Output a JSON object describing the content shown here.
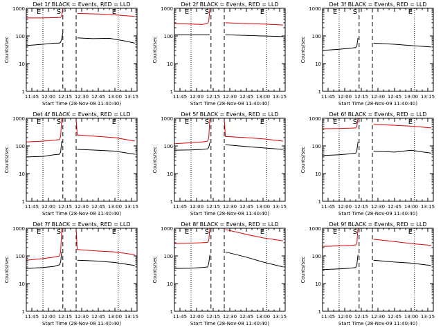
{
  "chart_data": [
    {
      "type": "line",
      "title": "Det 1f BLACK = Events, RED = LLD",
      "ylabel": "Counts/sec",
      "xlabel": "Start Time (28-Nov-08 11:40:40)",
      "yscale": "log",
      "ylim": [
        1,
        1000
      ],
      "xlim": [
        "11:40",
        "13:20"
      ],
      "x_ticks": [
        "11:45",
        "12:00",
        "12:15",
        "12:30",
        "12:45",
        "13:00",
        "13:15"
      ],
      "y_ticks": [
        "1",
        "10",
        "100",
        "1000"
      ],
      "markers": [
        {
          "label": "E",
          "time": "11:55",
          "style": "dotted"
        },
        {
          "label": "S",
          "time": "12:13",
          "style": "dashed"
        },
        {
          "label": "",
          "time": "12:25",
          "style": "dashed"
        },
        {
          "label": "E",
          "time": "13:03",
          "style": "dotted"
        }
      ],
      "series": [
        {
          "color": "red",
          "x": [
            "11:40",
            "11:55",
            "12:05",
            "12:11",
            "12:12",
            "12:13",
            "12:25",
            "12:26",
            "12:45",
            "13:00",
            "13:10",
            "13:18"
          ],
          "values": [
            450,
            450,
            460,
            470,
            550,
            1000,
            null,
            650,
            620,
            580,
            540,
            510
          ]
        },
        {
          "color": "black",
          "x": [
            "11:40",
            "11:55",
            "12:05",
            "12:10",
            "12:11",
            "12:12",
            "12:13",
            "12:25",
            "12:26",
            "12:40",
            "12:55",
            "13:10",
            "13:18"
          ],
          "values": [
            45,
            50,
            55,
            55,
            60,
            80,
            130,
            null,
            85,
            80,
            82,
            65,
            55
          ]
        }
      ]
    },
    {
      "type": "line",
      "title": "Det 2f BLACK = Events, RED = LLD",
      "ylabel": "Counts/sec",
      "xlabel": "Start Time (28-Nov-08 11:40:40)",
      "yscale": "log",
      "ylim": [
        1,
        1000
      ],
      "xlim": [
        "11:40",
        "13:20"
      ],
      "x_ticks": [
        "11:45",
        "12:00",
        "12:15",
        "12:30",
        "12:45",
        "13:00",
        "13:15"
      ],
      "y_ticks": [
        "1",
        "10",
        "100",
        "1000"
      ],
      "markers": [
        {
          "label": "E",
          "time": "11:55",
          "style": "dotted"
        },
        {
          "label": "S",
          "time": "12:13",
          "style": "dashed"
        },
        {
          "label": "",
          "time": "12:25",
          "style": "dashed"
        },
        {
          "label": "E",
          "time": "13:03",
          "style": "dotted"
        }
      ],
      "series": [
        {
          "color": "red",
          "x": [
            "11:40",
            "11:55",
            "12:05",
            "12:10",
            "12:11",
            "12:12",
            "12:25",
            "12:26",
            "12:45",
            "13:00",
            "13:18"
          ],
          "values": [
            280,
            270,
            260,
            280,
            350,
            1000,
            null,
            300,
            280,
            270,
            250
          ]
        },
        {
          "color": "black",
          "x": [
            "11:40",
            "11:55",
            "12:05",
            "12:10",
            "12:11",
            "12:12",
            "12:25",
            "12:26",
            "12:45",
            "13:00",
            "13:18"
          ],
          "values": [
            110,
            110,
            110,
            110,
            110,
            110,
            null,
            110,
            105,
            100,
            95
          ]
        }
      ]
    },
    {
      "type": "line",
      "title": "Det 3f BLACK = Events, RED = LLD",
      "ylabel": "Counts/sec",
      "xlabel": "Start Time (28-Nov-09 11:40:40)",
      "yscale": "log",
      "ylim": [
        1,
        1000
      ],
      "xlim": [
        "11:40",
        "13:20"
      ],
      "x_ticks": [
        "11:45",
        "12:00",
        "12:15",
        "12:30",
        "12:45",
        "13:00",
        "13:15"
      ],
      "y_ticks": [
        "1",
        "10",
        "100",
        "1000"
      ],
      "markers": [
        {
          "label": "E",
          "time": "11:55",
          "style": "dotted"
        },
        {
          "label": "S",
          "time": "12:13",
          "style": "dashed"
        },
        {
          "label": "",
          "time": "12:25",
          "style": "dashed"
        },
        {
          "label": "E",
          "time": "13:03",
          "style": "dotted"
        }
      ],
      "series": [
        {
          "color": "red",
          "x": [
            "11:40",
            "11:55",
            "12:05",
            "12:10",
            "12:11",
            "12:12",
            "12:13",
            "12:25",
            "12:26",
            "12:45",
            "13:00",
            "13:18"
          ],
          "values": [
            null,
            null,
            null,
            null,
            null,
            null,
            null,
            null,
            null,
            null,
            null,
            null
          ]
        },
        {
          "color": "black",
          "x": [
            "11:40",
            "11:55",
            "12:05",
            "12:10",
            "12:11",
            "12:12",
            "12:25",
            "12:26",
            "12:45",
            "13:00",
            "13:18"
          ],
          "values": [
            30,
            33,
            36,
            38,
            45,
            85,
            null,
            55,
            50,
            45,
            40
          ]
        }
      ]
    },
    {
      "type": "line",
      "title": "Det 4f BLACK = Events, RED = LLD",
      "ylabel": "Counts/sec",
      "xlabel": "Start Time (28-Nov-08 11:40:40)",
      "yscale": "log",
      "ylim": [
        1,
        1000
      ],
      "xlim": [
        "11:40",
        "13:20"
      ],
      "x_ticks": [
        "11:45",
        "12:00",
        "12:15",
        "12:30",
        "12:45",
        "13:00",
        "13:15"
      ],
      "y_ticks": [
        "1",
        "10",
        "100",
        "1000"
      ],
      "markers": [
        {
          "label": "E",
          "time": "11:55",
          "style": "dotted"
        },
        {
          "label": "S",
          "time": "12:13",
          "style": "dashed"
        },
        {
          "label": "",
          "time": "12:25",
          "style": "dashed"
        },
        {
          "label": "E",
          "time": "13:03",
          "style": "dotted"
        }
      ],
      "series": [
        {
          "color": "red",
          "x": [
            "11:40",
            "11:55",
            "12:05",
            "12:10",
            "12:11",
            "12:12",
            "12:25",
            "12:26",
            "12:45",
            "13:00",
            "13:18"
          ],
          "values": [
            140,
            150,
            160,
            170,
            220,
            1000,
            1000,
            250,
            220,
            200,
            150
          ]
        },
        {
          "color": "black",
          "x": [
            "11:40",
            "11:55",
            "12:05",
            "12:10",
            "12:11",
            "12:12",
            "12:25",
            "12:26",
            "12:45",
            "13:00",
            "13:18"
          ],
          "values": [
            40,
            42,
            48,
            50,
            60,
            150,
            null,
            75,
            70,
            65,
            50
          ]
        }
      ]
    },
    {
      "type": "line",
      "title": "Det 5f BLACK = Events, RED = LLD",
      "ylabel": "Counts/sec",
      "xlabel": "Start Time (28-Nov-08 11:40:40)",
      "yscale": "log",
      "ylim": [
        1,
        1000
      ],
      "xlim": [
        "11:40",
        "13:20"
      ],
      "x_ticks": [
        "11:45",
        "12:00",
        "12:15",
        "12:30",
        "12:45",
        "13:00",
        "13:15"
      ],
      "y_ticks": [
        "1",
        "10",
        "100",
        "1000"
      ],
      "markers": [
        {
          "label": "E",
          "time": "11:55",
          "style": "dotted"
        },
        {
          "label": "S",
          "time": "12:13",
          "style": "dashed"
        },
        {
          "label": "",
          "time": "12:25",
          "style": "dashed"
        },
        {
          "label": "E",
          "time": "13:03",
          "style": "dotted"
        }
      ],
      "series": [
        {
          "color": "red",
          "x": [
            "11:40",
            "11:55",
            "12:05",
            "12:10",
            "12:11",
            "12:12",
            "12:25",
            "12:26",
            "12:45",
            "13:00",
            "13:18"
          ],
          "values": [
            120,
            130,
            140,
            150,
            200,
            1000,
            1000,
            220,
            200,
            180,
            150
          ]
        },
        {
          "color": "black",
          "x": [
            "11:40",
            "11:55",
            "12:05",
            "12:10",
            "12:11",
            "12:12",
            "12:25",
            "12:26",
            "12:45",
            "13:00",
            "13:18"
          ],
          "values": [
            70,
            72,
            75,
            78,
            90,
            130,
            null,
            110,
            95,
            85,
            75
          ]
        }
      ]
    },
    {
      "type": "line",
      "title": "Det 6f BLACK = Events, RED = LLD",
      "ylabel": "Counts/sec",
      "xlabel": "Start Time (28-Nov-09 11:40:40)",
      "yscale": "log",
      "ylim": [
        1,
        1000
      ],
      "xlim": [
        "11:40",
        "13:20"
      ],
      "x_ticks": [
        "11:45",
        "12:00",
        "12:15",
        "12:30",
        "12:45",
        "13:00",
        "13:15"
      ],
      "y_ticks": [
        "1",
        "10",
        "100",
        "1000"
      ],
      "markers": [
        {
          "label": "E",
          "time": "11:55",
          "style": "dotted"
        },
        {
          "label": "S",
          "time": "12:13",
          "style": "dashed"
        },
        {
          "label": "",
          "time": "12:25",
          "style": "dashed"
        },
        {
          "label": "E",
          "time": "13:03",
          "style": "dotted"
        }
      ],
      "series": [
        {
          "color": "red",
          "x": [
            "11:40",
            "11:55",
            "12:05",
            "12:10",
            "12:11",
            "12:12",
            "12:25",
            "12:26",
            "12:45",
            "13:00",
            "13:18"
          ],
          "values": [
            420,
            430,
            440,
            450,
            520,
            1000,
            null,
            600,
            560,
            520,
            450
          ]
        },
        {
          "color": "black",
          "x": [
            "11:40",
            "11:55",
            "12:05",
            "12:10",
            "12:11",
            "12:12",
            "12:25",
            "12:26",
            "12:45",
            "13:00",
            "13:18"
          ],
          "values": [
            45,
            48,
            52,
            55,
            70,
            140,
            null,
            65,
            60,
            70,
            55
          ]
        }
      ]
    },
    {
      "type": "line",
      "title": "Det 7f BLACK = Events, RED = LLD",
      "ylabel": "Counts/sec",
      "xlabel": "Start Time (28-Nov-08 11:40:40)",
      "yscale": "log",
      "ylim": [
        1,
        1000
      ],
      "xlim": [
        "11:40",
        "13:20"
      ],
      "x_ticks": [
        "11:45",
        "12:00",
        "12:15",
        "12:30",
        "12:45",
        "13:00",
        "13:15"
      ],
      "y_ticks": [
        "1",
        "10",
        "100",
        "1000"
      ],
      "markers": [
        {
          "label": "E",
          "time": "11:55",
          "style": "dotted"
        },
        {
          "label": "S",
          "time": "12:13",
          "style": "dashed"
        },
        {
          "label": "",
          "time": "12:25",
          "style": "dashed"
        },
        {
          "label": "E",
          "time": "13:03",
          "style": "dotted"
        }
      ],
      "series": [
        {
          "color": "red",
          "x": [
            "11:40",
            "11:55",
            "12:05",
            "12:10",
            "12:11",
            "12:12",
            "12:25",
            "12:26",
            "12:45",
            "13:00",
            "13:18"
          ],
          "values": [
            70,
            80,
            90,
            100,
            140,
            1000,
            1000,
            170,
            150,
            140,
            110
          ]
        },
        {
          "color": "black",
          "x": [
            "11:40",
            "11:55",
            "12:05",
            "12:10",
            "12:11",
            "12:12",
            "12:25",
            "12:26",
            "12:45",
            "13:00",
            "13:18"
          ],
          "values": [
            35,
            38,
            42,
            48,
            60,
            140,
            null,
            70,
            65,
            58,
            45
          ]
        }
      ]
    },
    {
      "type": "line",
      "title": "Det 8f BLACK = Events, RED = LLD",
      "ylabel": "Counts/sec",
      "xlabel": "Start Time (28-Nov-08 11:40:40)",
      "yscale": "log",
      "ylim": [
        1,
        1000
      ],
      "xlim": [
        "11:40",
        "13:20"
      ],
      "x_ticks": [
        "11:45",
        "12:00",
        "12:15",
        "12:30",
        "12:45",
        "13:00",
        "13:15"
      ],
      "y_ticks": [
        "1",
        "10",
        "100",
        "1000"
      ],
      "markers": [
        {
          "label": "E",
          "time": "11:55",
          "style": "dotted"
        },
        {
          "label": "S",
          "time": "12:13",
          "style": "dashed"
        },
        {
          "label": "",
          "time": "12:25",
          "style": "dashed"
        },
        {
          "label": "E",
          "time": "13:03",
          "style": "dotted"
        }
      ],
      "series": [
        {
          "color": "red",
          "x": [
            "11:40",
            "11:55",
            "12:05",
            "12:10",
            "12:11",
            "12:12",
            "12:25",
            "12:26",
            "12:45",
            "13:00",
            "13:18"
          ],
          "values": [
            280,
            290,
            300,
            310,
            360,
            1000,
            null,
            900,
            600,
            450,
            350
          ]
        },
        {
          "color": "black",
          "x": [
            "11:40",
            "11:55",
            "12:05",
            "12:10",
            "12:11",
            "12:12",
            "12:25",
            "12:26",
            "12:45",
            "13:00",
            "13:18"
          ],
          "values": [
            35,
            36,
            38,
            40,
            55,
            110,
            null,
            140,
            90,
            60,
            40
          ]
        }
      ]
    },
    {
      "type": "line",
      "title": "Det 9f BLACK = Events, RED = LLD",
      "ylabel": "Counts/sec",
      "xlabel": "Start Time (28-Nov-09 11:40:40)",
      "yscale": "log",
      "ylim": [
        1,
        1000
      ],
      "xlim": [
        "11:40",
        "13:20"
      ],
      "x_ticks": [
        "11:45",
        "12:00",
        "12:15",
        "12:30",
        "12:45",
        "13:00",
        "13:15"
      ],
      "y_ticks": [
        "1",
        "10",
        "100",
        "1000"
      ],
      "markers": [
        {
          "label": "E",
          "time": "11:55",
          "style": "dotted"
        },
        {
          "label": "S",
          "time": "12:13",
          "style": "dashed"
        },
        {
          "label": "",
          "time": "12:25",
          "style": "dashed"
        },
        {
          "label": "E",
          "time": "13:03",
          "style": "dotted"
        }
      ],
      "series": [
        {
          "color": "red",
          "x": [
            "11:40",
            "11:55",
            "12:05",
            "12:10",
            "12:11",
            "12:12",
            "12:25",
            "12:26",
            "12:45",
            "13:00",
            "13:18"
          ],
          "values": [
            220,
            230,
            240,
            250,
            300,
            1000,
            null,
            400,
            330,
            280,
            240
          ]
        },
        {
          "color": "black",
          "x": [
            "11:40",
            "11:55",
            "12:05",
            "12:10",
            "12:11",
            "12:12",
            "12:25",
            "12:26",
            "12:45",
            "13:00",
            "13:18"
          ],
          "values": [
            32,
            34,
            36,
            38,
            50,
            110,
            null,
            70,
            60,
            55,
            45
          ]
        }
      ]
    }
  ]
}
